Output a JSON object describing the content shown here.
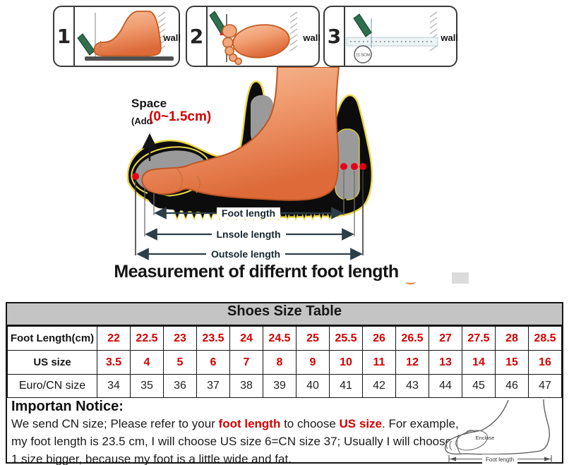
{
  "panels": {
    "items": [
      {
        "number": "1",
        "wall": "wall"
      },
      {
        "number": "2",
        "wall": "wall"
      },
      {
        "number": "3",
        "wall": "wall",
        "ruler_note": "11.5CM"
      }
    ]
  },
  "diagram": {
    "space_label": "Space",
    "add_prefix": "(Add",
    "add_value": "(0~1.5cm)",
    "dims": [
      {
        "label": "Foot length"
      },
      {
        "label": "Lnsole length"
      },
      {
        "label": "Outsole length"
      }
    ],
    "title": "Measurement of differnt foot length"
  },
  "size_table": {
    "title": "Shoes Size Table",
    "rows": [
      {
        "label": "Foot Length(cm)",
        "values": [
          "22",
          "22.5",
          "23",
          "23.5",
          "24",
          "24.5",
          "25",
          "25.5",
          "26",
          "26.5",
          "27",
          "27.5",
          "28",
          "28.5"
        ],
        "value_color": "#d40000",
        "value_bold": true
      },
      {
        "label": "US size",
        "values": [
          "3.5",
          "4",
          "5",
          "6",
          "7",
          "8",
          "9",
          "10",
          "11",
          "12",
          "13",
          "14",
          "15",
          "16"
        ],
        "value_color": "#d40000",
        "value_bold": true
      },
      {
        "label": "Euro/CN size",
        "values": [
          "34",
          "35",
          "36",
          "37",
          "38",
          "39",
          "40",
          "41",
          "42",
          "43",
          "44",
          "45",
          "46",
          "47"
        ],
        "value_color": "#222222",
        "value_bold": false
      }
    ]
  },
  "notice": {
    "heading": "Importan Notice:",
    "line1": {
      "a": "We send CN size; Please refer to your ",
      "b": "foot length",
      "c": " to choose ",
      "d": "US size",
      "e": ". For example,"
    },
    "line2": "my foot length is 23.5 cm, I will choose US size 6=CN size 37; Usually I will choose",
    "line3": "1 size bigger, because my foot is a little wide and fat.",
    "sketch": {
      "enclose": "Enclose",
      "foot_length": "Foot length"
    }
  },
  "colors": {
    "accent_red": "#d40000",
    "foot_fill": "#f09c70",
    "pencil_green": "#2e6f4e",
    "table_header_bg": "#c4c4c4",
    "dim_line": "#2c3e48"
  }
}
